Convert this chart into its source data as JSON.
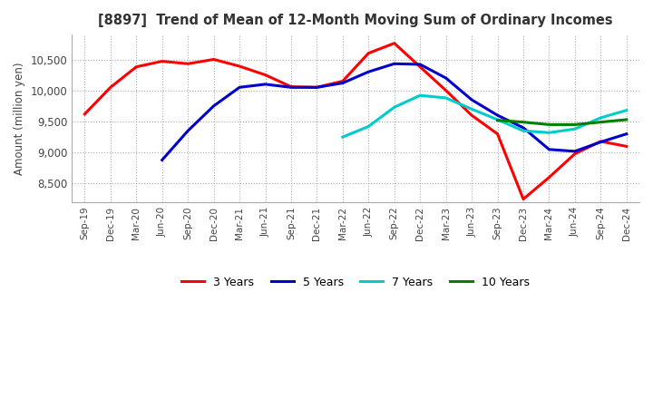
{
  "title": "[8897]  Trend of Mean of 12-Month Moving Sum of Ordinary Incomes",
  "ylabel": "Amount (million yen)",
  "ylim": [
    8200,
    10900
  ],
  "yticks": [
    8500,
    9000,
    9500,
    10000,
    10500
  ],
  "background_color": "#ffffff",
  "grid_color": "#aaaaaa",
  "x_labels": [
    "Sep-19",
    "Dec-19",
    "Mar-20",
    "Jun-20",
    "Sep-20",
    "Dec-20",
    "Mar-21",
    "Jun-21",
    "Sep-21",
    "Dec-21",
    "Mar-22",
    "Jun-22",
    "Sep-22",
    "Dec-22",
    "Mar-23",
    "Jun-23",
    "Sep-23",
    "Dec-23",
    "Mar-24",
    "Jun-24",
    "Sep-24",
    "Dec-24"
  ],
  "series": {
    "3 Years": {
      "color": "#ff0000",
      "linewidth": 2.2,
      "data": [
        [
          0,
          9620
        ],
        [
          1,
          10050
        ],
        [
          2,
          10380
        ],
        [
          3,
          10470
        ],
        [
          4,
          10430
        ],
        [
          5,
          10500
        ],
        [
          6,
          10390
        ],
        [
          7,
          10250
        ],
        [
          8,
          10060
        ],
        [
          9,
          10050
        ],
        [
          10,
          10150
        ],
        [
          11,
          10600
        ],
        [
          12,
          10760
        ],
        [
          13,
          10380
        ],
        [
          14,
          10000
        ],
        [
          15,
          9600
        ],
        [
          16,
          9300
        ],
        [
          17,
          8250
        ],
        [
          18,
          8600
        ],
        [
          19,
          8980
        ],
        [
          20,
          9180
        ],
        [
          21,
          9100
        ]
      ]
    },
    "5 Years": {
      "color": "#0000cc",
      "linewidth": 2.2,
      "data": [
        [
          3,
          8880
        ],
        [
          4,
          9350
        ],
        [
          5,
          9750
        ],
        [
          6,
          10050
        ],
        [
          7,
          10100
        ],
        [
          8,
          10050
        ],
        [
          9,
          10050
        ],
        [
          10,
          10120
        ],
        [
          11,
          10300
        ],
        [
          12,
          10430
        ],
        [
          13,
          10420
        ],
        [
          14,
          10200
        ],
        [
          15,
          9850
        ],
        [
          16,
          9600
        ],
        [
          17,
          9400
        ],
        [
          18,
          9050
        ],
        [
          19,
          9020
        ],
        [
          20,
          9170
        ],
        [
          21,
          9300
        ]
      ]
    },
    "7 Years": {
      "color": "#00cccc",
      "linewidth": 2.2,
      "data": [
        [
          10,
          9250
        ],
        [
          11,
          9420
        ],
        [
          12,
          9730
        ],
        [
          13,
          9920
        ],
        [
          14,
          9880
        ],
        [
          15,
          9700
        ],
        [
          16,
          9530
        ],
        [
          17,
          9350
        ],
        [
          18,
          9320
        ],
        [
          19,
          9380
        ],
        [
          20,
          9560
        ],
        [
          21,
          9680
        ]
      ]
    },
    "10 Years": {
      "color": "#008000",
      "linewidth": 2.2,
      "data": [
        [
          16,
          9520
        ],
        [
          17,
          9490
        ],
        [
          18,
          9450
        ],
        [
          19,
          9450
        ],
        [
          20,
          9490
        ],
        [
          21,
          9530
        ]
      ]
    }
  },
  "legend_labels": [
    "3 Years",
    "5 Years",
    "7 Years",
    "10 Years"
  ],
  "legend_colors": [
    "#ff0000",
    "#0000cc",
    "#00cccc",
    "#008000"
  ]
}
